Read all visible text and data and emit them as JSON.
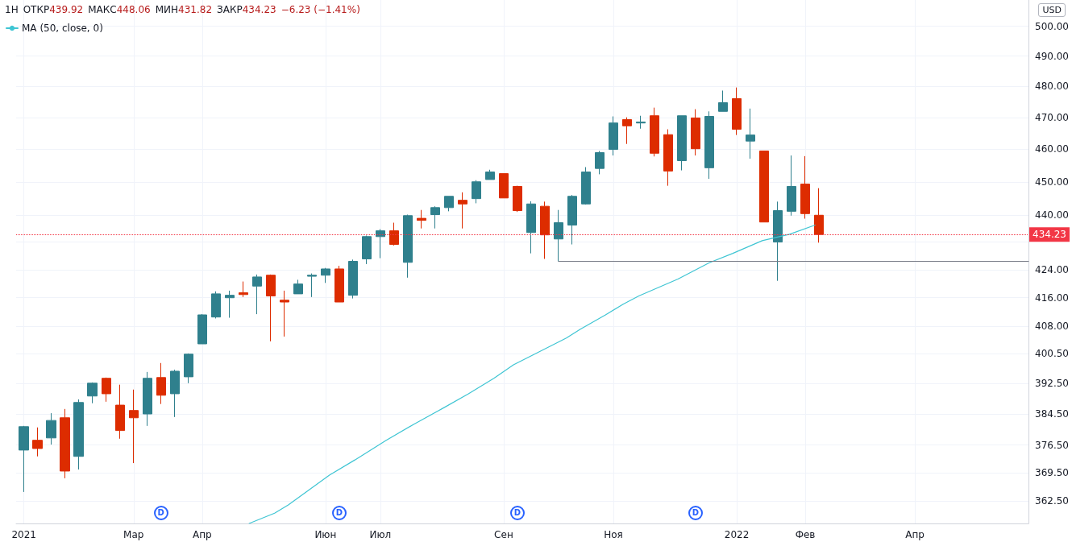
{
  "chart_data": {
    "type": "candlestick",
    "title": "1H",
    "ylabel": "USD",
    "annotations": [
      "ОТКР439.92",
      "МАКС448.06",
      "МИН431.82",
      "ЗАКР434.23",
      "−6.23 (−1.41%)",
      {
        "text": "D",
        "x": "2021-03-15"
      },
      {
        "text": "D",
        "x": "2021-06-14"
      },
      {
        "text": "D",
        "x": "2021-09-13"
      },
      {
        "text": "D",
        "x": "2021-12-13"
      }
    ],
    "xlim": [
      "2020-12-31",
      "2022-06-01"
    ],
    "xticks": [
      {
        "value": "2021-01-04",
        "label": "2021"
      },
      {
        "value": "2021-03-01",
        "label": "Мар"
      },
      {
        "value": "2021-04-05",
        "label": "Апр"
      },
      {
        "value": "2021-06-07",
        "label": "Июн"
      },
      {
        "value": "2021-07-05",
        "label": "Июл"
      },
      {
        "value": "2021-09-06",
        "label": "Сен"
      },
      {
        "value": "2021-11-01",
        "label": "Ноя"
      },
      {
        "value": "2022-01-03",
        "label": "2022"
      },
      {
        "value": "2022-02-07",
        "label": "Фев"
      },
      {
        "value": "2022-04-04",
        "label": "Апр"
      }
    ],
    "ylim": [
      357,
      509
    ],
    "log": true,
    "yticks": [
      {
        "value": 362.5,
        "label": "362.50"
      },
      {
        "value": 369.5,
        "label": "369.50"
      },
      {
        "value": 376.5,
        "label": "376.50"
      },
      {
        "value": 384.5,
        "label": "384.50"
      },
      {
        "value": 392.5,
        "label": "392.50"
      },
      {
        "value": 400.5,
        "label": "400.50"
      },
      {
        "value": 408,
        "label": "408.00"
      },
      {
        "value": 416,
        "label": "416.00"
      },
      {
        "value": 424,
        "label": "424.00"
      },
      {
        "value": 432,
        "label": null
      },
      {
        "value": 440,
        "label": "440.00"
      },
      {
        "value": 450,
        "label": "450.00"
      },
      {
        "value": 460,
        "label": "460.00"
      },
      {
        "value": 470,
        "label": "470.00"
      },
      {
        "value": 480,
        "label": "480.00"
      },
      {
        "value": 490,
        "label": "490.00"
      },
      {
        "value": 500,
        "label": "500.00"
      }
    ],
    "grid": true,
    "legend": "top left",
    "ref_lines": [
      {
        "axis": "y",
        "value": 434.23,
        "label": "434.23",
        "color": "#f23645",
        "line_style": "dotted"
      }
    ],
    "series": [
      {
        "type": "candlestick",
        "x": [
          "2021-01-04",
          "2021-01-11",
          "2021-01-18",
          "2021-01-25",
          "2021-02-01",
          "2021-02-08",
          "2021-02-15",
          "2021-02-22",
          "2021-03-01",
          "2021-03-08",
          "2021-03-15",
          "2021-03-22",
          "2021-03-29",
          "2021-04-05",
          "2021-04-12",
          "2021-04-19",
          "2021-04-26",
          "2021-05-03",
          "2021-05-10",
          "2021-05-17",
          "2021-05-24",
          "2021-05-31",
          "2021-06-07",
          "2021-06-14",
          "2021-06-21",
          "2021-06-28",
          "2021-07-05",
          "2021-07-12",
          "2021-07-19",
          "2021-07-26",
          "2021-08-02",
          "2021-08-09",
          "2021-08-16",
          "2021-08-23",
          "2021-08-30",
          "2021-09-06",
          "2021-09-13",
          "2021-09-20",
          "2021-09-27",
          "2021-10-04",
          "2021-10-11",
          "2021-10-18",
          "2021-10-25",
          "2021-11-01",
          "2021-11-08",
          "2021-11-15",
          "2021-11-22",
          "2021-11-29",
          "2021-12-06",
          "2021-12-13",
          "2021-12-20",
          "2021-12-27",
          "2022-01-03",
          "2022-01-10",
          "2022-01-17",
          "2022-01-24",
          "2022-01-31",
          "2022-02-07",
          "2022-02-14"
        ],
        "ohlc": [
          [
            375.2,
            381.4,
            364.7,
            381.2
          ],
          [
            377.7,
            381.0,
            373.6,
            375.6
          ],
          [
            378.3,
            384.7,
            376.6,
            382.8
          ],
          [
            383.5,
            385.8,
            368.1,
            369.9
          ],
          [
            373.6,
            388.3,
            370.3,
            387.5
          ],
          [
            389.2,
            392.8,
            387.3,
            392.6
          ],
          [
            393.9,
            394.1,
            387.7,
            389.8
          ],
          [
            386.8,
            392.2,
            378.1,
            380.2
          ],
          [
            385.4,
            390.9,
            371.9,
            383.5
          ],
          [
            384.5,
            395.6,
            381.4,
            393.9
          ],
          [
            394.1,
            398.0,
            387.1,
            389.4
          ],
          [
            389.8,
            396.2,
            383.7,
            395.8
          ],
          [
            394.3,
            400.6,
            392.6,
            400.4
          ],
          [
            403.2,
            411.4,
            403.2,
            411.2
          ],
          [
            410.6,
            417.8,
            410.2,
            417.1
          ],
          [
            416.0,
            418.0,
            410.4,
            416.7
          ],
          [
            417.4,
            420.6,
            416.2,
            416.9
          ],
          [
            419.3,
            422.6,
            411.4,
            421.9
          ],
          [
            422.4,
            422.6,
            403.9,
            416.5
          ],
          [
            415.3,
            418.0,
            405.2,
            414.8
          ],
          [
            417.1,
            421.1,
            417.1,
            419.9
          ],
          [
            422.1,
            422.9,
            416.2,
            422.4
          ],
          [
            422.4,
            424.5,
            420.2,
            424.2
          ],
          [
            424.2,
            425.1,
            414.8,
            414.8
          ],
          [
            416.7,
            426.9,
            415.8,
            426.4
          ],
          [
            427.1,
            433.9,
            425.6,
            433.6
          ],
          [
            433.6,
            435.8,
            427.3,
            435.3
          ],
          [
            435.3,
            437.7,
            431.0,
            431.3
          ],
          [
            426.1,
            440.1,
            421.7,
            439.8
          ],
          [
            439.0,
            441.5,
            436.0,
            438.4
          ],
          [
            440.1,
            442.6,
            436.0,
            442.2
          ],
          [
            442.2,
            445.6,
            441.1,
            445.6
          ],
          [
            444.4,
            446.8,
            436.0,
            443.3
          ],
          [
            444.9,
            450.5,
            443.5,
            450.0
          ],
          [
            450.7,
            453.7,
            450.7,
            453.0
          ],
          [
            452.5,
            452.5,
            445.1,
            445.1
          ],
          [
            448.6,
            448.8,
            440.9,
            441.3
          ],
          [
            434.8,
            444.1,
            428.7,
            443.3
          ],
          [
            442.6,
            444.0,
            427.1,
            434.1
          ],
          [
            432.9,
            441.5,
            426.4,
            437.7
          ],
          [
            437.0,
            446.0,
            431.3,
            445.6
          ],
          [
            443.3,
            454.5,
            443.1,
            453.0
          ],
          [
            454.1,
            459.5,
            452.3,
            459.0
          ],
          [
            460.0,
            470.4,
            458.1,
            468.3
          ],
          [
            469.4,
            470.1,
            461.7,
            467.4
          ],
          [
            468.3,
            470.6,
            466.5,
            468.6
          ],
          [
            470.6,
            473.2,
            457.8,
            458.8
          ],
          [
            464.6,
            466.3,
            448.8,
            453.3
          ],
          [
            456.5,
            470.6,
            453.5,
            470.6
          ],
          [
            469.9,
            472.7,
            458.1,
            460.2
          ],
          [
            454.3,
            472.0,
            450.9,
            470.4
          ],
          [
            472.0,
            478.7,
            472.0,
            474.8
          ],
          [
            476.1,
            479.7,
            464.5,
            466.3
          ],
          [
            462.6,
            472.9,
            457.1,
            464.5
          ],
          [
            459.5,
            459.5,
            437.9,
            437.9
          ],
          [
            432.0,
            444.0,
            420.8,
            441.3
          ],
          [
            441.1,
            458.1,
            439.8,
            448.6
          ],
          [
            449.3,
            457.9,
            438.9,
            440.4
          ],
          [
            439.92,
            448.06,
            431.82,
            434.23
          ]
        ],
        "colors": [
          "#2f808d",
          "#dd2c00",
          "#2f808d",
          "#dd2c00",
          "#2f808d",
          "#2f808d",
          "#dd2c00",
          "#dd2c00",
          "#dd2c00",
          "#2f808d",
          "#dd2c00",
          "#2f808d",
          "#2f808d",
          "#2f808d",
          "#2f808d",
          "#2f808d",
          "#dd2c00",
          "#2f808d",
          "#dd2c00",
          "#dd2c00",
          "#2f808d",
          "#2f808d",
          "#2f808d",
          "#dd2c00",
          "#2f808d",
          "#2f808d",
          "#2f808d",
          "#dd2c00",
          "#2f808d",
          "#dd2c00",
          "#2f808d",
          "#2f808d",
          "#dd2c00",
          "#2f808d",
          "#2f808d",
          "#dd2c00",
          "#dd2c00",
          "#2f808d",
          "#dd2c00",
          "#2f808d",
          "#2f808d",
          "#2f808d",
          "#2f808d",
          "#2f808d",
          "#dd2c00",
          "#2f808d",
          "#dd2c00",
          "#dd2c00",
          "#2f808d",
          "#dd2c00",
          "#2f808d",
          "#2f808d",
          "#dd2c00",
          "#2f808d",
          "#dd2c00",
          "#2f808d",
          "#2f808d",
          "#dd2c00",
          "#dd2c00"
        ]
      },
      {
        "type": "line",
        "name": "MA (50, close, 0)",
        "color": "#3fc5d3",
        "x": [
          "2021-04-29",
          "2021-05-12",
          "2021-05-19",
          "2021-06-09",
          "2021-06-22",
          "2021-07-08",
          "2021-07-22",
          "2021-08-06",
          "2021-08-19",
          "2021-09-01",
          "2021-09-11",
          "2021-09-24",
          "2021-10-08",
          "2021-10-15",
          "2021-10-28",
          "2021-11-06",
          "2021-11-14",
          "2021-12-04",
          "2021-12-20",
          "2022-01-01",
          "2022-01-16",
          "2022-01-30",
          "2022-02-12"
        ],
        "values": [
          357.0,
          359.5,
          361.5,
          368.9,
          372.7,
          377.7,
          381.8,
          386.0,
          389.8,
          393.9,
          397.5,
          401.0,
          404.8,
          407.2,
          411.2,
          414.2,
          416.5,
          421.3,
          426.0,
          428.7,
          432.4,
          434.3,
          437.0
        ]
      },
      {
        "type": "line",
        "color": "#787b86",
        "x": [
          "2021-10-04",
          "2022-06-01"
        ],
        "values": [
          426.4,
          426.4
        ]
      }
    ]
  }
}
